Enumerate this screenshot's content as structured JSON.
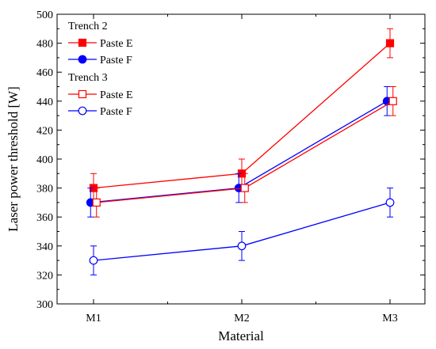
{
  "chart_data": {
    "type": "line",
    "title": "",
    "xlabel": "Material",
    "ylabel": "Laser power threshold [W]",
    "categories": [
      "M1",
      "M2",
      "M3"
    ],
    "ylim": [
      300,
      500
    ],
    "y_major_ticks": [
      300,
      320,
      340,
      360,
      380,
      400,
      420,
      440,
      460,
      480,
      500
    ],
    "grid": false,
    "legend_position": "top-left",
    "legend_groups": [
      {
        "title": "Trench 2",
        "series": [
          "Paste E",
          "Paste F"
        ]
      },
      {
        "title": "Trench 3",
        "series": [
          "Paste E",
          "Paste F"
        ]
      }
    ],
    "series": [
      {
        "name": "Paste E",
        "group": "Trench 2",
        "color": "#ff0000",
        "marker": "square",
        "filled": true,
        "values": [
          380,
          390,
          480
        ],
        "errors": [
          10,
          10,
          10
        ],
        "x_offset": 0
      },
      {
        "name": "Paste F",
        "group": "Trench 2",
        "color": "#0000ff",
        "marker": "circle",
        "filled": true,
        "values": [
          370,
          380,
          440
        ],
        "errors": [
          10,
          10,
          10
        ],
        "x_offset": -0.02
      },
      {
        "name": "Paste E",
        "group": "Trench 3",
        "color": "#ff0000",
        "marker": "square",
        "filled": false,
        "values": [
          370,
          380,
          440
        ],
        "errors": [
          10,
          10,
          10
        ],
        "x_offset": 0.02
      },
      {
        "name": "Paste F",
        "group": "Trench 3",
        "color": "#0000ff",
        "marker": "circle",
        "filled": false,
        "values": [
          330,
          340,
          370
        ],
        "errors": [
          10,
          10,
          10
        ],
        "x_offset": 0
      }
    ]
  }
}
